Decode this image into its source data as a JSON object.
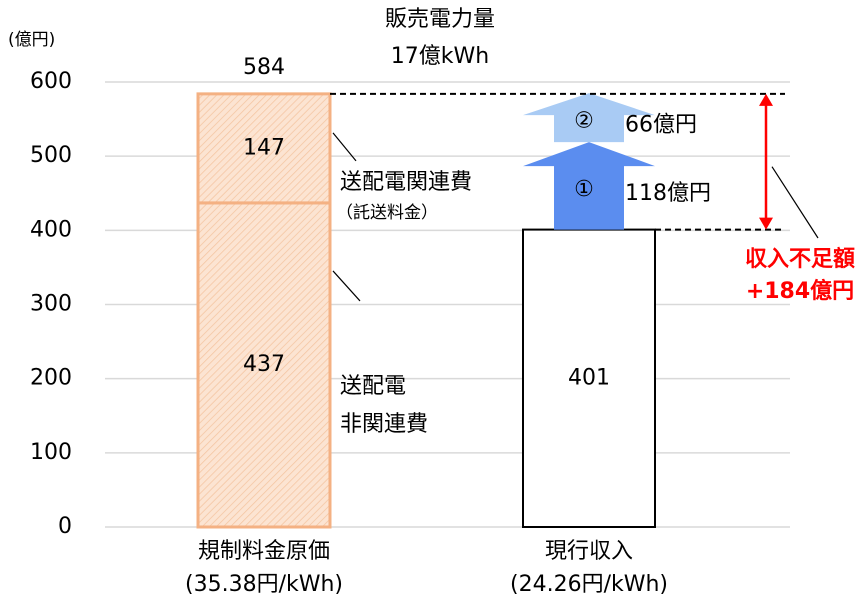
{
  "chart_data": {
    "type": "bar",
    "unit_label": "(億円)",
    "top_note": [
      "販売電力量",
      "17億kWh"
    ],
    "categories": [
      "規制料金原価",
      "現行収入"
    ],
    "category_notes": [
      "(35.38円/kWh)",
      "(24.26円/kWh)"
    ],
    "ylim": [
      0,
      600
    ],
    "yticks": [
      0,
      100,
      200,
      300,
      400,
      500,
      600
    ],
    "grid": true,
    "series": [
      {
        "name_lines": [
          "送配電",
          "非関連費"
        ],
        "color": "#f4b183",
        "values": [
          437,
          null
        ]
      },
      {
        "name_lines": [
          "送配電関連費",
          "（託送料金）"
        ],
        "color": "#f4b183",
        "values": [
          147,
          null
        ]
      },
      {
        "color": "#000000",
        "values": [
          null,
          401
        ]
      },
      {
        "name": "①",
        "color": "#5b8def",
        "shape": "arrow",
        "values": [
          null,
          118
        ],
        "value_labels": [
          null,
          "118億円"
        ]
      },
      {
        "name": "②",
        "color": "#a9cbf4",
        "shape": "arrow",
        "values": [
          null,
          66
        ],
        "value_labels": [
          null,
          "66億円"
        ]
      }
    ],
    "totals": [
      584,
      null
    ],
    "gap": {
      "value": 184,
      "label_lines": [
        "収入不足額",
        "+184億円"
      ],
      "color": "#ff0000"
    }
  }
}
